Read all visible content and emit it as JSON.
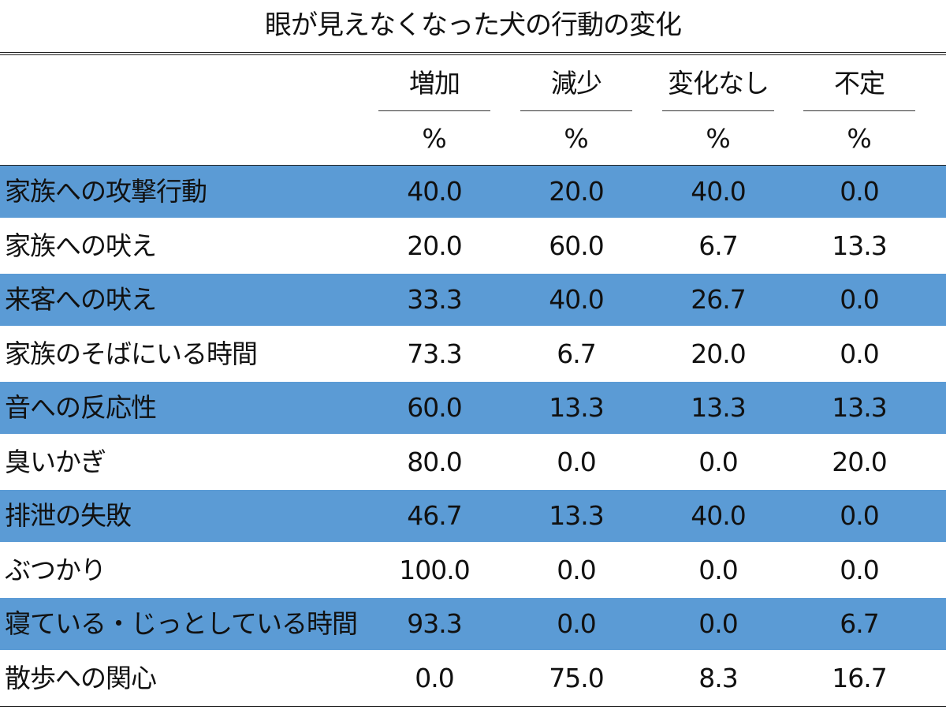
{
  "chart_data": {
    "type": "table",
    "title": "眼が見えなくなった犬の行動の変化",
    "columns": [
      "増加",
      "減少",
      "変化なし",
      "不定"
    ],
    "unit": "%",
    "rows": [
      {
        "label": "家族への攻撃行動",
        "values": [
          "40.0",
          "20.0",
          "40.0",
          "0.0"
        ]
      },
      {
        "label": "家族への吠え",
        "values": [
          "20.0",
          "60.0",
          "6.7",
          "13.3"
        ]
      },
      {
        "label": "来客への吠え",
        "values": [
          "33.3",
          "40.0",
          "26.7",
          "0.0"
        ]
      },
      {
        "label": "家族のそばにいる時間",
        "values": [
          "73.3",
          "6.7",
          "20.0",
          "0.0"
        ]
      },
      {
        "label": "音への反応性",
        "values": [
          "60.0",
          "13.3",
          "13.3",
          "13.3"
        ]
      },
      {
        "label": "臭いかぎ",
        "values": [
          "80.0",
          "0.0",
          "0.0",
          "20.0"
        ]
      },
      {
        "label": "排泄の失敗",
        "values": [
          "46.7",
          "13.3",
          "40.0",
          "0.0"
        ]
      },
      {
        "label": "ぶつかり",
        "values": [
          "100.0",
          "0.0",
          "0.0",
          "0.0"
        ]
      },
      {
        "label": "寝ている・じっとしている時間",
        "values": [
          "93.3",
          "0.0",
          "0.0",
          "6.7"
        ]
      },
      {
        "label": "散歩への関心",
        "values": [
          "0.0",
          "75.0",
          "8.3",
          "16.7"
        ]
      }
    ],
    "shade_color": "#5b9bd5"
  }
}
